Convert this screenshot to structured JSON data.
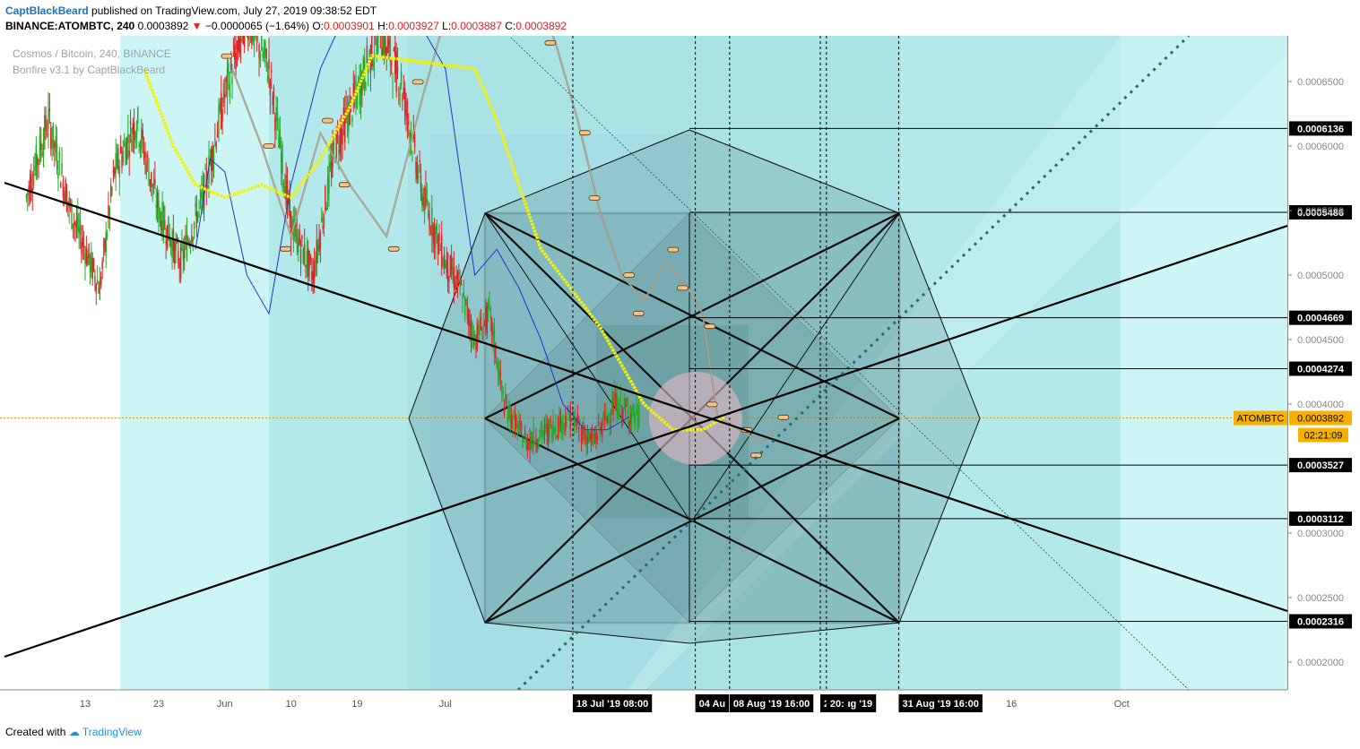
{
  "header": {
    "author": "CaptBlackBeard",
    "published_text": "published on TradingView.com, July 27, 2019 09:38:52 EDT",
    "symbol_line": "BINANCE:ATOMBTC, 240",
    "last": "0.0003892",
    "change": "−0.0000065 (−1.64%)",
    "o_label": "O:",
    "o": "0.0003901",
    "h_label": "H:",
    "h": "0.0003927",
    "l_label": "L:",
    "l": "0.0003887",
    "c_label": "C:",
    "c": "0.0003892"
  },
  "watermark": {
    "title": "Cosmos / Bitcoin, 240, BINANCE",
    "indicator": "Bonfire v3.1 by CaptBlackBeard"
  },
  "footer": {
    "created": "Created with",
    "brand": "TradingView"
  },
  "colors": {
    "band_light": "#cdf5f5",
    "band_mid": "#b3e9ea",
    "band_dark": "#a3dfe2",
    "geometry_fill": "#4f7f85",
    "ma_yellow": "#f2f20a",
    "ma_blue": "#2233cc",
    "up": "#22aa22",
    "down": "#dd2222",
    "price_tag": "#f5b000",
    "label_bg": "#000000"
  },
  "chart_data": {
    "type": "candlestick",
    "symbol": "ATOMBTC",
    "interval": "240",
    "y_axis": {
      "ticks": [
        "0.0006500",
        "0.0006000",
        "0.0005500",
        "0.0005000",
        "0.0004500",
        "0.0004000",
        "0.0003000",
        "0.0002500",
        "0.0002000"
      ],
      "tick_values": [
        0.00065,
        0.0006,
        0.00055,
        0.0005,
        0.00045,
        0.0004,
        0.0003,
        0.00025,
        0.0002
      ]
    },
    "x_axis": {
      "ticks": [
        "13",
        "23",
        "Jun",
        "10",
        "19",
        "Jul",
        "16",
        "Oct"
      ],
      "tick_dates": [
        "2019-05-13",
        "2019-05-23",
        "2019-06-01",
        "2019-06-10",
        "2019-06-19",
        "2019-07-01",
        "2019-09-16",
        "2019-10-01"
      ]
    },
    "x_range": [
      "2019-05-04",
      "2019-10-07"
    ],
    "levels": [
      {
        "label": "0.0006136",
        "value": 0.0006136
      },
      {
        "label": "0.0005486",
        "value": 0.0005486
      },
      {
        "label": "0.0004669",
        "value": 0.0004669
      },
      {
        "label": "0.0004274",
        "value": 0.0004274
      },
      {
        "label": "0.0003527",
        "value": 0.0003527
      },
      {
        "label": "0.0003112",
        "value": 0.0003112
      },
      {
        "label": "0.0002316",
        "value": 0.0002316
      }
    ],
    "current_price": {
      "symbol": "ATOMBTC",
      "label": "0.0003892",
      "value": 0.0003892,
      "countdown": "02:21:09"
    },
    "date_markers": [
      {
        "label": "18 Jul '19  08:00",
        "date": "2019-07-18T08:00"
      },
      {
        "label": "04 Au",
        "date": "2019-08-04"
      },
      {
        "label": "08 Aug '19  16:00",
        "date": "2019-08-08T16:00"
      },
      {
        "label": "21 Aug '19",
        "date": "2019-08-21"
      },
      {
        "label": "20:",
        "date": "2019-08-21T20:00"
      },
      {
        "label": "31 Aug '19  16:00",
        "date": "2019-08-31T16:00"
      }
    ],
    "price_path": [
      [
        "2019-05-05",
        0.00056
      ],
      [
        "2019-05-08",
        0.00062
      ],
      [
        "2019-05-11",
        0.00055
      ],
      [
        "2019-05-13",
        0.00052
      ],
      [
        "2019-05-15",
        0.00049
      ],
      [
        "2019-05-17",
        0.00058
      ],
      [
        "2019-05-20",
        0.00062
      ],
      [
        "2019-05-23",
        0.00055
      ],
      [
        "2019-05-26",
        0.00051
      ],
      [
        "2019-05-29",
        0.00056
      ],
      [
        "2019-06-01",
        0.00064
      ],
      [
        "2019-06-04",
        0.0007
      ],
      [
        "2019-06-07",
        0.00066
      ],
      [
        "2019-06-10",
        0.00054
      ],
      [
        "2019-06-13",
        0.0005
      ],
      [
        "2019-06-16",
        0.0006
      ],
      [
        "2019-06-19",
        0.00064
      ],
      [
        "2019-06-22",
        0.00069
      ],
      [
        "2019-06-25",
        0.00065
      ],
      [
        "2019-06-28",
        0.00056
      ],
      [
        "2019-07-01",
        0.00051
      ],
      [
        "2019-07-03",
        0.00049
      ],
      [
        "2019-07-05",
        0.00045
      ],
      [
        "2019-07-07",
        0.00047
      ],
      [
        "2019-07-09",
        0.0004
      ],
      [
        "2019-07-12",
        0.00037
      ],
      [
        "2019-07-15",
        0.00038
      ],
      [
        "2019-07-18",
        0.00039
      ],
      [
        "2019-07-21",
        0.00037
      ],
      [
        "2019-07-24",
        0.0004
      ],
      [
        "2019-07-27",
        0.00039
      ]
    ],
    "ghost_path": [
      [
        "2019-06-02",
        0.00066
      ],
      [
        "2019-06-06",
        0.0006
      ],
      [
        "2019-06-10",
        0.00053
      ],
      [
        "2019-06-14",
        0.00061
      ],
      [
        "2019-06-18",
        0.00057
      ],
      [
        "2019-06-23",
        0.00053
      ],
      [
        "2019-06-28",
        0.00064
      ],
      [
        "2019-07-03",
        0.00074
      ],
      [
        "2019-07-07",
        0.0008
      ],
      [
        "2019-07-11",
        0.00075
      ],
      [
        "2019-07-16",
        0.00068
      ],
      [
        "2019-07-19",
        0.00062
      ],
      [
        "2019-07-22",
        0.00055
      ],
      [
        "2019-07-25",
        0.0005
      ],
      [
        "2019-07-28",
        0.00048
      ],
      [
        "2019-07-31",
        0.00051
      ],
      [
        "2019-08-03",
        0.00049
      ],
      [
        "2019-08-05",
        0.00047
      ],
      [
        "2019-08-07",
        0.00039
      ],
      [
        "2019-08-10",
        0.00038
      ],
      [
        "2019-08-13",
        0.00037
      ],
      [
        "2019-08-15",
        0.00038
      ]
    ],
    "ma_yellow": [
      [
        "2019-05-21",
        0.00066
      ],
      [
        "2019-05-25",
        0.0006
      ],
      [
        "2019-05-28",
        0.00057
      ],
      [
        "2019-06-01",
        0.00056
      ],
      [
        "2019-06-06",
        0.00057
      ],
      [
        "2019-06-10",
        0.00056
      ],
      [
        "2019-06-14",
        0.00059
      ],
      [
        "2019-06-18",
        0.00063
      ],
      [
        "2019-06-21",
        0.00067
      ],
      [
        "2019-07-05",
        0.00066
      ],
      [
        "2019-07-08",
        0.00062
      ],
      [
        "2019-07-11",
        0.00057
      ],
      [
        "2019-07-14",
        0.00052
      ],
      [
        "2019-07-18",
        0.00049
      ],
      [
        "2019-07-22",
        0.00046
      ],
      [
        "2019-07-25",
        0.00043
      ],
      [
        "2019-07-28",
        0.0004
      ],
      [
        "2019-08-01",
        0.00038
      ],
      [
        "2019-08-05",
        0.00038
      ],
      [
        "2019-08-08",
        0.00039
      ]
    ],
    "ma_blue": [
      [
        "2019-05-28",
        0.00052
      ],
      [
        "2019-05-30",
        0.00059
      ],
      [
        "2019-06-01",
        0.00058
      ],
      [
        "2019-06-04",
        0.0005
      ],
      [
        "2019-06-07",
        0.00047
      ],
      [
        "2019-06-10",
        0.00057
      ],
      [
        "2019-06-14",
        0.00066
      ],
      [
        "2019-06-18",
        0.00071
      ],
      [
        "2019-06-26",
        0.00071
      ],
      [
        "2019-07-01",
        0.00066
      ],
      [
        "2019-07-05",
        0.0005
      ],
      [
        "2019-07-08",
        0.00052
      ],
      [
        "2019-07-11",
        0.00049
      ],
      [
        "2019-07-14",
        0.00045
      ],
      [
        "2019-07-17",
        0.0004
      ],
      [
        "2019-07-20",
        0.00038
      ],
      [
        "2019-07-23",
        0.00038
      ],
      [
        "2019-07-26",
        0.00039
      ]
    ]
  }
}
